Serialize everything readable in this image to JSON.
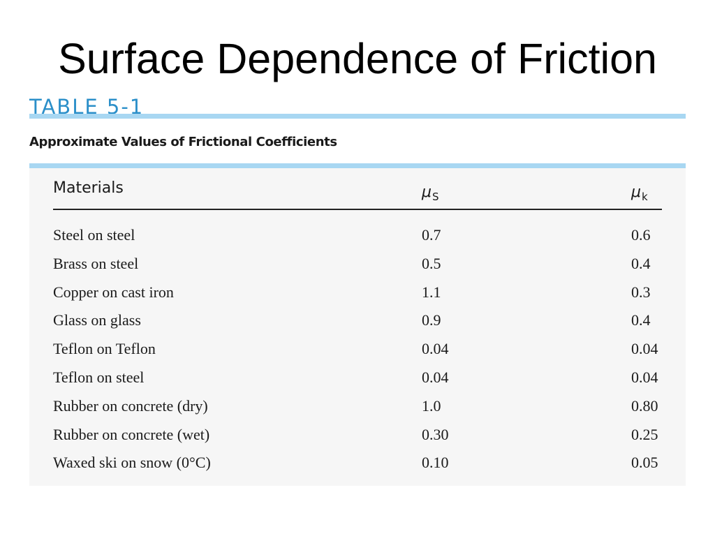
{
  "slide": {
    "title": "Surface Dependence of Friction"
  },
  "table": {
    "label": "TABLE 5-1",
    "caption": "Approximate Values of Frictional Coefficients",
    "headers": {
      "materials": "Materials",
      "mu_s_symbol": "μ",
      "mu_s_subscript": "S",
      "mu_k_symbol": "μ",
      "mu_k_subscript": "k"
    },
    "rows": [
      {
        "material": "Steel on steel",
        "mu_s": "0.7",
        "mu_k": "0.6"
      },
      {
        "material": "Brass on steel",
        "mu_s": "0.5",
        "mu_k": "0.4"
      },
      {
        "material": "Copper on cast iron",
        "mu_s": "1.1",
        "mu_k": "0.3"
      },
      {
        "material": "Glass on glass",
        "mu_s": "0.9",
        "mu_k": "0.4"
      },
      {
        "material": "Teflon on Teflon",
        "mu_s": "0.04",
        "mu_k": "0.04"
      },
      {
        "material": "Teflon on steel",
        "mu_s": "0.04",
        "mu_k": "0.04"
      },
      {
        "material": "Rubber on concrete (dry)",
        "mu_s": "1.0",
        "mu_k": "0.80"
      },
      {
        "material": "Rubber on concrete (wet)",
        "mu_s": "0.30",
        "mu_k": "0.25"
      },
      {
        "material": "Waxed ski on snow (0°C)",
        "mu_s": "0.10",
        "mu_k": "0.05"
      }
    ]
  },
  "colors": {
    "label_blue": "#2b8fc9",
    "rule_blue": "#a8d7f2",
    "panel_gray": "#f6f6f6"
  }
}
